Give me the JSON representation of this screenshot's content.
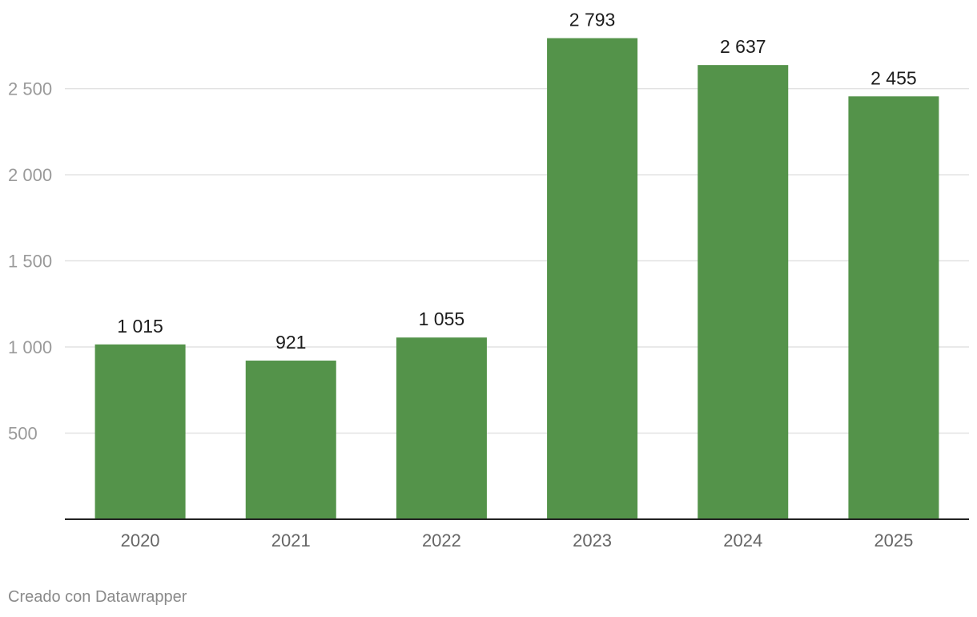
{
  "chart_data": {
    "type": "bar",
    "categories": [
      "2020",
      "2021",
      "2022",
      "2023",
      "2024",
      "2025"
    ],
    "values": [
      1015,
      921,
      1055,
      2793,
      2637,
      2455
    ],
    "value_labels": [
      "1 015",
      "921",
      "1 055",
      "2 793",
      "2 637",
      "2 455"
    ],
    "y_ticks": [
      500,
      1000,
      1500,
      2000,
      2500
    ],
    "y_tick_labels": [
      "500",
      "1 000",
      "1 500",
      "2 000",
      "2 500"
    ],
    "ylim": [
      0,
      2800
    ],
    "grid": true,
    "bar_color": "#54934a",
    "title": "",
    "xlabel": "",
    "ylabel": ""
  },
  "footer": {
    "credit": "Creado con Datawrapper"
  }
}
